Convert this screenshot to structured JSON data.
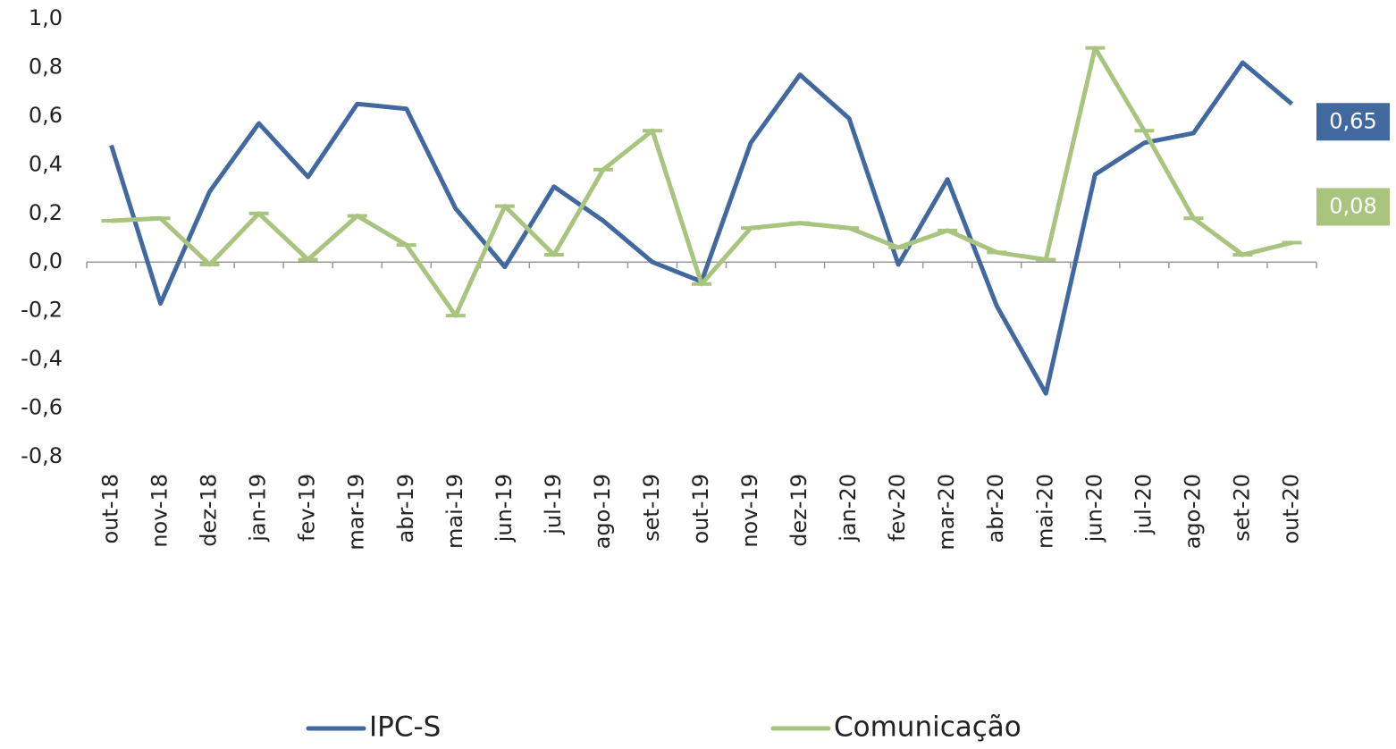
{
  "chart_data": {
    "type": "line",
    "categories": [
      "out-18",
      "nov-18",
      "dez-18",
      "jan-19",
      "fev-19",
      "mar-19",
      "abr-19",
      "mai-19",
      "jun-19",
      "jul-19",
      "ago-19",
      "set-19",
      "out-19",
      "nov-19",
      "dez-19",
      "jan-20",
      "fev-20",
      "mar-20",
      "abr-20",
      "mai-20",
      "jun-20",
      "jul-20",
      "ago-20",
      "set-20",
      "out-20"
    ],
    "series": [
      {
        "name": "IPC-S",
        "color": "#41699f",
        "values": [
          0.48,
          -0.17,
          0.29,
          0.57,
          0.35,
          0.65,
          0.63,
          0.22,
          -0.02,
          0.31,
          0.17,
          0.0,
          -0.08,
          0.49,
          0.77,
          0.59,
          -0.01,
          0.34,
          -0.18,
          -0.54,
          0.36,
          0.49,
          0.53,
          0.82,
          0.65
        ],
        "value_labels": [
          null,
          null,
          null,
          null,
          null,
          null,
          null,
          null,
          null,
          null,
          null,
          null,
          null,
          null,
          null,
          null,
          null,
          null,
          null,
          null,
          null,
          null,
          null,
          null,
          "0,65"
        ]
      },
      {
        "name": "Comunicação",
        "color": "#a8c47e",
        "marker": "dash",
        "values": [
          0.17,
          0.18,
          -0.01,
          0.2,
          0.01,
          0.19,
          0.07,
          -0.22,
          0.23,
          0.03,
          0.38,
          0.54,
          -0.09,
          0.14,
          0.16,
          0.14,
          0.06,
          0.13,
          0.04,
          0.01,
          0.88,
          0.54,
          0.18,
          0.03,
          0.08
        ],
        "value_labels": [
          null,
          null,
          null,
          null,
          null,
          null,
          null,
          null,
          null,
          null,
          null,
          null,
          null,
          null,
          null,
          null,
          null,
          null,
          null,
          null,
          null,
          null,
          null,
          null,
          "0,08"
        ]
      }
    ],
    "ylim": [
      -0.8,
      1.0
    ],
    "yticks": [
      {
        "value": -0.8,
        "label": "-0,8"
      },
      {
        "value": -0.6,
        "label": "-0,6"
      },
      {
        "value": -0.4,
        "label": "-0,4"
      },
      {
        "value": -0.2,
        "label": "-0,2"
      },
      {
        "value": 0,
        "label": "0,0"
      },
      {
        "value": 0.2,
        "label": "0,2"
      },
      {
        "value": 0.4,
        "label": "0,4"
      },
      {
        "value": 0.6,
        "label": "0,6"
      },
      {
        "value": 0.8,
        "label": "0,8"
      },
      {
        "value": 1.0,
        "label": "1,0"
      }
    ],
    "grid": false,
    "legend": "bottom"
  }
}
